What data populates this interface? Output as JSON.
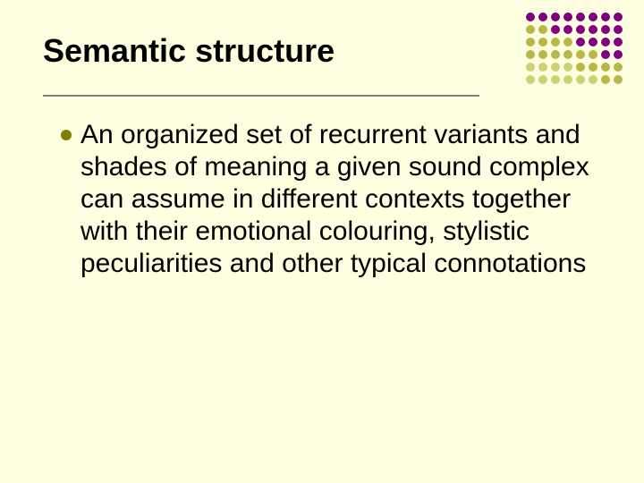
{
  "title": "Semantic structure",
  "bullets": [
    {
      "text": "An organized set of recurrent variants and shades of meaning a given sound complex can assume in different contexts together with their emotional colouring, stylistic peculiarities and other typical connotations"
    }
  ],
  "colors": {
    "background": "#feffe0",
    "text": "#000000",
    "bullet": "#808000",
    "underline": "#808080"
  },
  "decoration": {
    "rows": 6,
    "cols": 8,
    "colors": [
      [
        "#800080",
        "#800080",
        "#800080",
        "#800080",
        "#800080",
        "#800080",
        "#800080",
        "#800080"
      ],
      [
        "#b8b848",
        "#b8b848",
        "#800080",
        "#800080",
        "#800080",
        "#800080",
        "#800080",
        "#800080"
      ],
      [
        "#b8b848",
        "#b8b848",
        "#b8b848",
        "#b8b848",
        "#800080",
        "#800080",
        "#800080",
        "#800080"
      ],
      [
        "#b8b848",
        "#b8b848",
        "#b8b848",
        "#b8b848",
        "#b8b848",
        "#b8b848",
        "#800080",
        "#800080"
      ],
      [
        "#ccd272",
        "#ccd272",
        "#ccd272",
        "#ccd272",
        "#b8b848",
        "#b8b848",
        "#b8b848",
        "#b8b848"
      ],
      [
        "#ccd272",
        "#ccd272",
        "#ccd272",
        "#ccd272",
        "#ccd272",
        "#ccd272",
        "#b8b848",
        "#b8b848"
      ]
    ]
  }
}
